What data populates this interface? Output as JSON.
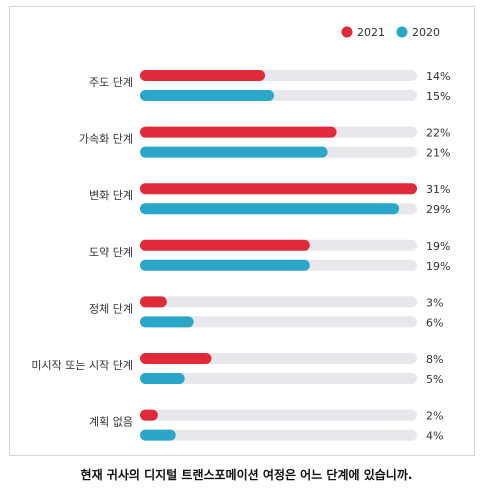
{
  "chart_data": {
    "type": "bar",
    "orientation": "horizontal",
    "categories": [
      "주도 단계",
      "가속화 단계",
      "변화 단계",
      "도약 단계",
      "정체 단계",
      "미시작 또는 시작 단계",
      "계획 없음"
    ],
    "series": [
      {
        "name": "2021",
        "values": [
          14,
          22,
          31,
          19,
          3,
          8,
          2
        ],
        "labels": [
          "14%",
          "22%",
          "31%",
          "19%",
          "3%",
          "8%",
          "2%"
        ]
      },
      {
        "name": "2020",
        "values": [
          15,
          21,
          29,
          19,
          6,
          5,
          4
        ],
        "labels": [
          "15%",
          "21%",
          "29%",
          "19%",
          "6%",
          "5%",
          "4%"
        ]
      }
    ],
    "xlim": [
      0,
      31
    ],
    "legend_position": "top-right",
    "grid": false
  },
  "colors": {
    "series_2021": "#e02a3a",
    "series_2020": "#2aa6c9",
    "track": "#e8e8ec"
  },
  "caption": "현재 귀사의 디지털 트랜스포메이션 여정은 어느 단계에 있습니까."
}
